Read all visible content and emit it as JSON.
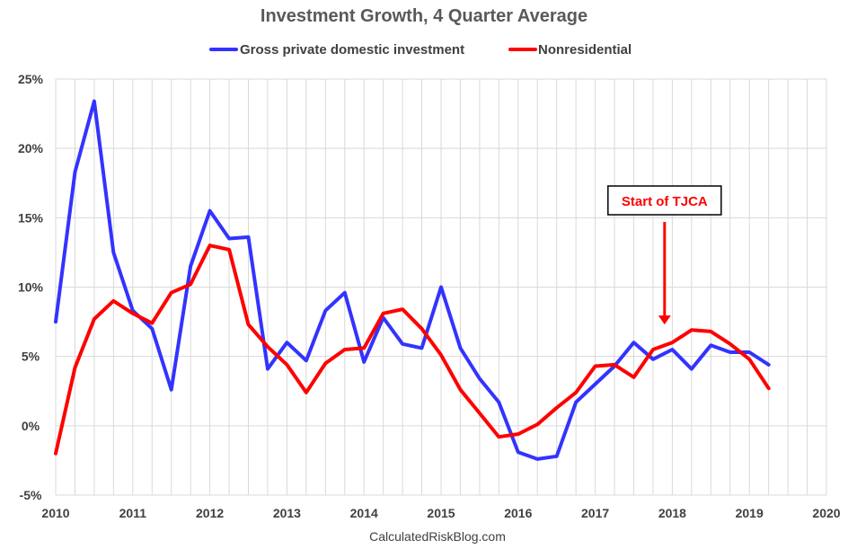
{
  "chart_data": {
    "type": "line",
    "title": "Investment Growth, 4 Quarter Average",
    "xlabel": "",
    "ylabel": "",
    "source": "CalculatedRiskBlog.com",
    "xlim": [
      2010,
      2020
    ],
    "ylim": [
      -5,
      25
    ],
    "x_ticks": [
      "2010",
      "2011",
      "2012",
      "2013",
      "2014",
      "2015",
      "2016",
      "2017",
      "2018",
      "2019",
      "2020"
    ],
    "y_ticks": [
      -5,
      0,
      5,
      10,
      15,
      20,
      25
    ],
    "y_tick_labels": [
      "-5%",
      "0%",
      "5%",
      "10%",
      "15%",
      "20%",
      "25%"
    ],
    "grid": true,
    "legend_position": "top",
    "series": [
      {
        "name": "Gross private domestic investment",
        "color": "#3333ff",
        "x": [
          2010.0,
          2010.25,
          2010.5,
          2010.75,
          2011.0,
          2011.25,
          2011.5,
          2011.75,
          2012.0,
          2012.25,
          2012.5,
          2012.75,
          2013.0,
          2013.25,
          2013.5,
          2013.75,
          2014.0,
          2014.25,
          2014.5,
          2014.75,
          2015.0,
          2015.25,
          2015.5,
          2015.75,
          2016.0,
          2016.25,
          2016.5,
          2016.75,
          2017.0,
          2017.25,
          2017.5,
          2017.75,
          2018.0,
          2018.25,
          2018.5,
          2018.75,
          2019.0,
          2019.25
        ],
        "values": [
          7.5,
          18.3,
          23.4,
          12.5,
          8.3,
          7.0,
          2.6,
          11.5,
          15.5,
          13.5,
          13.6,
          4.1,
          6.0,
          4.7,
          8.3,
          9.6,
          4.6,
          7.8,
          5.9,
          5.6,
          10.0,
          5.6,
          3.4,
          1.7,
          -1.9,
          -2.4,
          -2.2,
          1.7,
          3.0,
          4.3,
          6.0,
          4.8,
          5.5,
          4.1,
          5.8,
          5.3,
          5.3,
          4.4
        ]
      },
      {
        "name": "Nonresidential",
        "color": "#ff0000",
        "x": [
          2010.0,
          2010.25,
          2010.5,
          2010.75,
          2011.0,
          2011.25,
          2011.5,
          2011.75,
          2012.0,
          2012.25,
          2012.5,
          2012.75,
          2013.0,
          2013.25,
          2013.5,
          2013.75,
          2014.0,
          2014.25,
          2014.5,
          2014.75,
          2015.0,
          2015.25,
          2015.5,
          2015.75,
          2016.0,
          2016.25,
          2016.5,
          2016.75,
          2017.0,
          2017.25,
          2017.5,
          2017.75,
          2018.0,
          2018.25,
          2018.5,
          2018.75,
          2019.0,
          2019.25
        ],
        "values": [
          -2.0,
          4.2,
          7.7,
          9.0,
          8.1,
          7.4,
          9.6,
          10.2,
          13.0,
          12.7,
          7.3,
          5.7,
          4.4,
          2.4,
          4.5,
          5.5,
          5.6,
          8.1,
          8.4,
          7.0,
          5.1,
          2.6,
          0.9,
          -0.8,
          -0.6,
          0.1,
          1.3,
          2.4,
          4.3,
          4.4,
          3.5,
          5.5,
          6.0,
          6.9,
          6.8,
          5.9,
          4.8,
          2.7
        ]
      }
    ],
    "annotation": {
      "text": "Start of TJCA",
      "x": 2017.9,
      "arrow_from_y": 14.7,
      "arrow_to_y": 7.3,
      "color": "#ff0000"
    }
  }
}
